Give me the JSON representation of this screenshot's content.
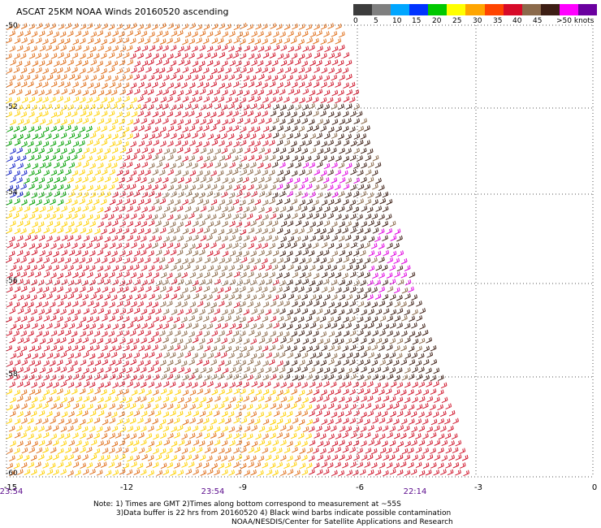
{
  "title": "ASCAT 25KM NOAA Winds 20160520 ascending",
  "legend": {
    "labels": [
      "0",
      "5",
      "10",
      "15",
      "20",
      "25",
      "30",
      "35",
      "40",
      "45",
      ">50 knots"
    ],
    "colors": [
      "#3c3c3c",
      "#7f7f7f",
      "#00a6ff",
      "#0033ff",
      "#00c800",
      "#ffff00",
      "#ffa500",
      "#ff4400",
      "#d70a28",
      "#8b6a4b",
      "#3d1e14",
      "#ff00ff",
      "#6a009f"
    ]
  },
  "axes": {
    "lon_ticks": [
      "-15",
      "-12",
      "-9",
      "-6",
      "-3",
      "0"
    ],
    "lat_ticks": [
      "-50",
      "-52",
      "-54",
      "-56",
      "-58",
      "-60"
    ],
    "lon_range": [
      -15,
      0
    ],
    "lat_range": [
      -60,
      -50
    ]
  },
  "times": [
    "23:54",
    "23:54",
    "22:14"
  ],
  "notes": {
    "line1": "Note: 1) Times are GMT 2)Times along bottom correspond to measurement at ~55S",
    "line2": "3)Data buffer is 22 hrs from 20160520 4) Black wind barbs indicate possible contamination",
    "line3": "NOAA/NESDIS/Center for Satellite Applications and Research"
  },
  "regions": [
    {
      "name": "north-west",
      "color": "#e0701c"
    },
    {
      "name": "west-light-winds",
      "color": "#1020c8"
    },
    {
      "name": "west-green",
      "color": "#00a000"
    },
    {
      "name": "west-yellow",
      "color": "#ffd000"
    },
    {
      "name": "central-red",
      "color": "#d0152b"
    },
    {
      "name": "central-brown",
      "color": "#8b6a4b"
    },
    {
      "name": "east-dark",
      "color": "#3d1e14"
    },
    {
      "name": "east-magenta",
      "color": "#e000e0"
    }
  ]
}
